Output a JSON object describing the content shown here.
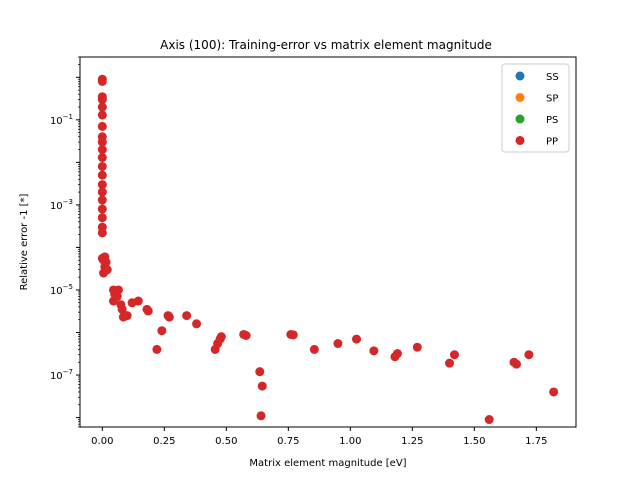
{
  "chart_data": {
    "type": "scatter",
    "title": "Axis (100): Training-error vs matrix element magnitude",
    "xlabel": "Matrix element magnitude [eV]",
    "ylabel": "Relative error -1 [*]",
    "xlim": [
      -0.09,
      1.91
    ],
    "ylim": [
      6e-09,
      3.0
    ],
    "yscale": "log",
    "grid": false,
    "legend_position": "top-right",
    "x_ticks": [
      {
        "value": 0.0,
        "label": "0.00"
      },
      {
        "value": 0.25,
        "label": "0.25"
      },
      {
        "value": 0.5,
        "label": "0.50"
      },
      {
        "value": 0.75,
        "label": "0.75"
      },
      {
        "value": 1.0,
        "label": "1.00"
      },
      {
        "value": 1.25,
        "label": "1.25"
      },
      {
        "value": 1.5,
        "label": "1.50"
      },
      {
        "value": 1.75,
        "label": "1.75"
      }
    ],
    "y_ticks": [
      {
        "value": 1e-07,
        "base": "10",
        "exp": "−7"
      },
      {
        "value": 1e-05,
        "base": "10",
        "exp": "−5"
      },
      {
        "value": 0.001,
        "base": "10",
        "exp": "−3"
      },
      {
        "value": 0.1,
        "base": "10",
        "exp": "−1"
      }
    ],
    "series": [
      {
        "name": "SS",
        "color": "#1f77b4",
        "points": []
      },
      {
        "name": "SP",
        "color": "#ff7f0e",
        "points": []
      },
      {
        "name": "PS",
        "color": "#2ca02c",
        "points": []
      },
      {
        "name": "PP",
        "color": "#d62728",
        "points": [
          [
            0.0,
            0.9
          ],
          [
            0.0,
            0.8
          ],
          [
            0.0,
            0.35
          ],
          [
            0.0,
            0.3
          ],
          [
            0.0,
            0.2
          ],
          [
            0.0,
            0.13
          ],
          [
            0.0,
            0.07
          ],
          [
            0.0,
            0.04
          ],
          [
            0.0,
            0.03
          ],
          [
            0.0,
            0.02
          ],
          [
            0.0,
            0.013
          ],
          [
            0.0,
            0.008
          ],
          [
            0.0,
            0.005
          ],
          [
            0.0,
            0.003
          ],
          [
            0.0,
            0.002
          ],
          [
            0.0,
            0.0013
          ],
          [
            0.0,
            0.0008
          ],
          [
            0.0,
            0.0005
          ],
          [
            0.0,
            0.0003
          ],
          [
            0.0,
            0.00022
          ],
          [
            0.0,
            5.5e-05
          ],
          [
            0.005,
            5e-05
          ],
          [
            0.01,
            6e-05
          ],
          [
            0.015,
            4.5e-05
          ],
          [
            0.01,
            3.5e-05
          ],
          [
            0.005,
            2.5e-05
          ],
          [
            0.02,
            3e-05
          ],
          [
            0.045,
            1e-05
          ],
          [
            0.05,
            8e-06
          ],
          [
            0.055,
            9e-06
          ],
          [
            0.06,
            7e-06
          ],
          [
            0.065,
            1e-05
          ],
          [
            0.045,
            5.5e-06
          ],
          [
            0.075,
            4.5e-06
          ],
          [
            0.08,
            3.5e-06
          ],
          [
            0.085,
            2.3e-06
          ],
          [
            0.1,
            2.5e-06
          ],
          [
            0.12,
            5e-06
          ],
          [
            0.145,
            5.5e-06
          ],
          [
            0.18,
            3.5e-06
          ],
          [
            0.185,
            3.2e-06
          ],
          [
            0.22,
            4e-07
          ],
          [
            0.24,
            1.1e-06
          ],
          [
            0.265,
            2.5e-06
          ],
          [
            0.27,
            2.3e-06
          ],
          [
            0.34,
            2.5e-06
          ],
          [
            0.38,
            1.6e-06
          ],
          [
            0.455,
            4e-07
          ],
          [
            0.465,
            5.5e-07
          ],
          [
            0.48,
            8e-07
          ],
          [
            0.475,
            7e-07
          ],
          [
            0.57,
            9e-07
          ],
          [
            0.58,
            8.5e-07
          ],
          [
            0.635,
            1.2e-07
          ],
          [
            0.645,
            5.5e-08
          ],
          [
            0.64,
            1.1e-08
          ],
          [
            0.76,
            9e-07
          ],
          [
            0.77,
            8.8e-07
          ],
          [
            0.855,
            4e-07
          ],
          [
            0.95,
            5.5e-07
          ],
          [
            1.025,
            7e-07
          ],
          [
            1.095,
            3.7e-07
          ],
          [
            1.18,
            2.7e-07
          ],
          [
            1.19,
            3.2e-07
          ],
          [
            1.27,
            4.5e-07
          ],
          [
            1.4,
            1.9e-07
          ],
          [
            1.42,
            3e-07
          ],
          [
            1.56,
            9e-09
          ],
          [
            1.66,
            2e-07
          ],
          [
            1.67,
            1.8e-07
          ],
          [
            1.72,
            3e-07
          ],
          [
            1.82,
            4e-08
          ]
        ]
      }
    ]
  }
}
